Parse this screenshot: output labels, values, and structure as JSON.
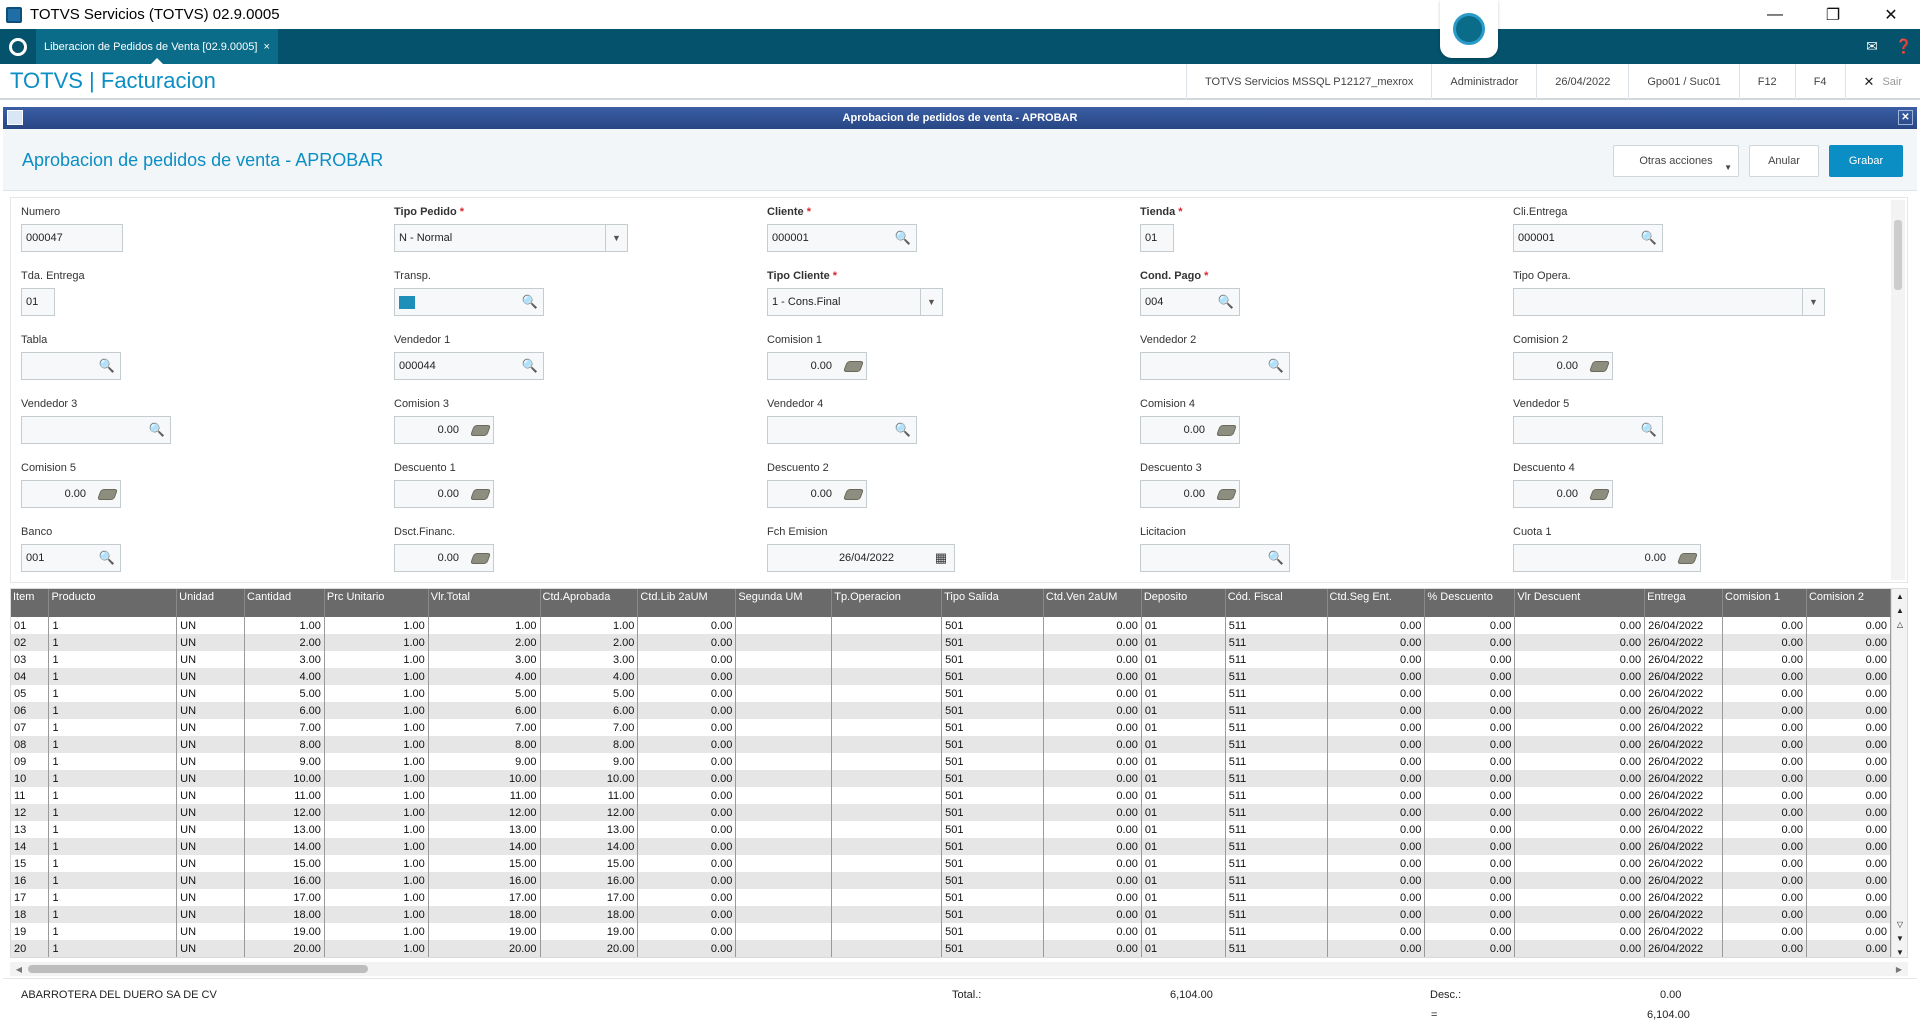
{
  "window": {
    "title": "TOTVS Servicios (TOTVS) 02.9.0005"
  },
  "tab": {
    "label": "Liberacion de Pedidos de Venta [02.9.0005]",
    "close": "×"
  },
  "header": {
    "brand": "TOTVS | Facturacion",
    "environment": "TOTVS Servicios MSSQL P12127_mexrox",
    "user": "Administrador",
    "date": "26/04/2022",
    "group": "Gpo01 / Suc01",
    "f12": "F12",
    "f4": "F4",
    "exit": "Sair"
  },
  "dialog": {
    "title": "Aprobacion de pedidos de venta - APROBAR"
  },
  "page": {
    "title": "Aprobacion de pedidos de venta - APROBAR",
    "other_actions": "Otras acciones",
    "cancel": "Anular",
    "save": "Grabar"
  },
  "form": {
    "numero": {
      "label": "Numero",
      "value": "000047"
    },
    "tipo_pedido": {
      "label": "Tipo Pedido",
      "value": "N - Normal"
    },
    "cliente": {
      "label": "Cliente",
      "value": "000001"
    },
    "tienda": {
      "label": "Tienda",
      "value": "01"
    },
    "cli_entrega": {
      "label": "Cli.Entrega",
      "value": "000001"
    },
    "tda_entrega": {
      "label": "Tda. Entrega",
      "value": "01"
    },
    "transp": {
      "label": "Transp.",
      "value": ""
    },
    "tipo_cliente": {
      "label": "Tipo Cliente",
      "value": "1 - Cons.Final"
    },
    "cond_pago": {
      "label": "Cond. Pago",
      "value": "004"
    },
    "tipo_opera": {
      "label": "Tipo Opera.",
      "value": ""
    },
    "tabla": {
      "label": "Tabla",
      "value": ""
    },
    "vendedor1": {
      "label": "Vendedor 1",
      "value": "000044"
    },
    "comision1": {
      "label": "Comision 1",
      "value": "0.00"
    },
    "vendedor2": {
      "label": "Vendedor 2",
      "value": ""
    },
    "comision2": {
      "label": "Comision 2",
      "value": "0.00"
    },
    "vendedor3": {
      "label": "Vendedor 3",
      "value": ""
    },
    "comision3": {
      "label": "Comision 3",
      "value": "0.00"
    },
    "vendedor4": {
      "label": "Vendedor 4",
      "value": ""
    },
    "comision4": {
      "label": "Comision 4",
      "value": "0.00"
    },
    "vendedor5": {
      "label": "Vendedor 5",
      "value": ""
    },
    "comision5": {
      "label": "Comision 5",
      "value": "0.00"
    },
    "descuento1": {
      "label": "Descuento 1",
      "value": "0.00"
    },
    "descuento2": {
      "label": "Descuento 2",
      "value": "0.00"
    },
    "descuento3": {
      "label": "Descuento 3",
      "value": "0.00"
    },
    "descuento4": {
      "label": "Descuento 4",
      "value": "0.00"
    },
    "banco": {
      "label": "Banco",
      "value": "001"
    },
    "dsct_financ": {
      "label": "Dsct.Financ.",
      "value": "0.00"
    },
    "fch_emision": {
      "label": "Fch Emision",
      "value": "26/04/2022"
    },
    "licitacion": {
      "label": "Licitacion",
      "value": ""
    },
    "cuota1": {
      "label": "Cuota 1",
      "value": "0.00"
    }
  },
  "grid": {
    "columns": [
      "Item",
      "Producto",
      "Unidad",
      "Cantidad",
      "Prc Unitario",
      "Vlr.Total",
      "Ctd.Aprobada",
      "Ctd.Lib 2aUM",
      "Segunda UM",
      "Tp.Operacion",
      "Tipo Salida",
      "Ctd.Ven 2aUM",
      "Deposito",
      "Cód. Fiscal",
      "Ctd.Seg Ent.",
      "% Descuento",
      "Vlr Descuent",
      "Entrega",
      "Comision 1",
      "Comision 2"
    ],
    "rows": [
      [
        "01",
        "1",
        "UN",
        "1.00",
        "1.00",
        "1.00",
        "1.00",
        "0.00",
        "",
        "",
        "501",
        "0.00",
        "01",
        "511",
        "0.00",
        "0.00",
        "0.00",
        "26/04/2022",
        "0.00",
        "0.00"
      ],
      [
        "02",
        "1",
        "UN",
        "2.00",
        "1.00",
        "2.00",
        "2.00",
        "0.00",
        "",
        "",
        "501",
        "0.00",
        "01",
        "511",
        "0.00",
        "0.00",
        "0.00",
        "26/04/2022",
        "0.00",
        "0.00"
      ],
      [
        "03",
        "1",
        "UN",
        "3.00",
        "1.00",
        "3.00",
        "3.00",
        "0.00",
        "",
        "",
        "501",
        "0.00",
        "01",
        "511",
        "0.00",
        "0.00",
        "0.00",
        "26/04/2022",
        "0.00",
        "0.00"
      ],
      [
        "04",
        "1",
        "UN",
        "4.00",
        "1.00",
        "4.00",
        "4.00",
        "0.00",
        "",
        "",
        "501",
        "0.00",
        "01",
        "511",
        "0.00",
        "0.00",
        "0.00",
        "26/04/2022",
        "0.00",
        "0.00"
      ],
      [
        "05",
        "1",
        "UN",
        "5.00",
        "1.00",
        "5.00",
        "5.00",
        "0.00",
        "",
        "",
        "501",
        "0.00",
        "01",
        "511",
        "0.00",
        "0.00",
        "0.00",
        "26/04/2022",
        "0.00",
        "0.00"
      ],
      [
        "06",
        "1",
        "UN",
        "6.00",
        "1.00",
        "6.00",
        "6.00",
        "0.00",
        "",
        "",
        "501",
        "0.00",
        "01",
        "511",
        "0.00",
        "0.00",
        "0.00",
        "26/04/2022",
        "0.00",
        "0.00"
      ],
      [
        "07",
        "1",
        "UN",
        "7.00",
        "1.00",
        "7.00",
        "7.00",
        "0.00",
        "",
        "",
        "501",
        "0.00",
        "01",
        "511",
        "0.00",
        "0.00",
        "0.00",
        "26/04/2022",
        "0.00",
        "0.00"
      ],
      [
        "08",
        "1",
        "UN",
        "8.00",
        "1.00",
        "8.00",
        "8.00",
        "0.00",
        "",
        "",
        "501",
        "0.00",
        "01",
        "511",
        "0.00",
        "0.00",
        "0.00",
        "26/04/2022",
        "0.00",
        "0.00"
      ],
      [
        "09",
        "1",
        "UN",
        "9.00",
        "1.00",
        "9.00",
        "9.00",
        "0.00",
        "",
        "",
        "501",
        "0.00",
        "01",
        "511",
        "0.00",
        "0.00",
        "0.00",
        "26/04/2022",
        "0.00",
        "0.00"
      ],
      [
        "10",
        "1",
        "UN",
        "10.00",
        "1.00",
        "10.00",
        "10.00",
        "0.00",
        "",
        "",
        "501",
        "0.00",
        "01",
        "511",
        "0.00",
        "0.00",
        "0.00",
        "26/04/2022",
        "0.00",
        "0.00"
      ],
      [
        "11",
        "1",
        "UN",
        "11.00",
        "1.00",
        "11.00",
        "11.00",
        "0.00",
        "",
        "",
        "501",
        "0.00",
        "01",
        "511",
        "0.00",
        "0.00",
        "0.00",
        "26/04/2022",
        "0.00",
        "0.00"
      ],
      [
        "12",
        "1",
        "UN",
        "12.00",
        "1.00",
        "12.00",
        "12.00",
        "0.00",
        "",
        "",
        "501",
        "0.00",
        "01",
        "511",
        "0.00",
        "0.00",
        "0.00",
        "26/04/2022",
        "0.00",
        "0.00"
      ],
      [
        "13",
        "1",
        "UN",
        "13.00",
        "1.00",
        "13.00",
        "13.00",
        "0.00",
        "",
        "",
        "501",
        "0.00",
        "01",
        "511",
        "0.00",
        "0.00",
        "0.00",
        "26/04/2022",
        "0.00",
        "0.00"
      ],
      [
        "14",
        "1",
        "UN",
        "14.00",
        "1.00",
        "14.00",
        "14.00",
        "0.00",
        "",
        "",
        "501",
        "0.00",
        "01",
        "511",
        "0.00",
        "0.00",
        "0.00",
        "26/04/2022",
        "0.00",
        "0.00"
      ],
      [
        "15",
        "1",
        "UN",
        "15.00",
        "1.00",
        "15.00",
        "15.00",
        "0.00",
        "",
        "",
        "501",
        "0.00",
        "01",
        "511",
        "0.00",
        "0.00",
        "0.00",
        "26/04/2022",
        "0.00",
        "0.00"
      ],
      [
        "16",
        "1",
        "UN",
        "16.00",
        "1.00",
        "16.00",
        "16.00",
        "0.00",
        "",
        "",
        "501",
        "0.00",
        "01",
        "511",
        "0.00",
        "0.00",
        "0.00",
        "26/04/2022",
        "0.00",
        "0.00"
      ],
      [
        "17",
        "1",
        "UN",
        "17.00",
        "1.00",
        "17.00",
        "17.00",
        "0.00",
        "",
        "",
        "501",
        "0.00",
        "01",
        "511",
        "0.00",
        "0.00",
        "0.00",
        "26/04/2022",
        "0.00",
        "0.00"
      ],
      [
        "18",
        "1",
        "UN",
        "18.00",
        "1.00",
        "18.00",
        "18.00",
        "0.00",
        "",
        "",
        "501",
        "0.00",
        "01",
        "511",
        "0.00",
        "0.00",
        "0.00",
        "26/04/2022",
        "0.00",
        "0.00"
      ],
      [
        "19",
        "1",
        "UN",
        "19.00",
        "1.00",
        "19.00",
        "19.00",
        "0.00",
        "",
        "",
        "501",
        "0.00",
        "01",
        "511",
        "0.00",
        "0.00",
        "0.00",
        "26/04/2022",
        "0.00",
        "0.00"
      ],
      [
        "20",
        "1",
        "UN",
        "20.00",
        "1.00",
        "20.00",
        "20.00",
        "0.00",
        "",
        "",
        "501",
        "0.00",
        "01",
        "511",
        "0.00",
        "0.00",
        "0.00",
        "26/04/2022",
        "0.00",
        "0.00"
      ]
    ]
  },
  "totals": {
    "client_name": "ABARROTERA DEL DUERO SA DE CV",
    "total_label": "Total.:",
    "total_value": "6,104.00",
    "desc_label": "Desc.:",
    "desc_value": "0.00",
    "eq_label": "=",
    "net_value": "6,104.00"
  },
  "colors": {
    "brand": "#0b8ec4",
    "tabbar": "#04526b",
    "dialog": "#2a4a8a",
    "required": "#d9262c"
  }
}
